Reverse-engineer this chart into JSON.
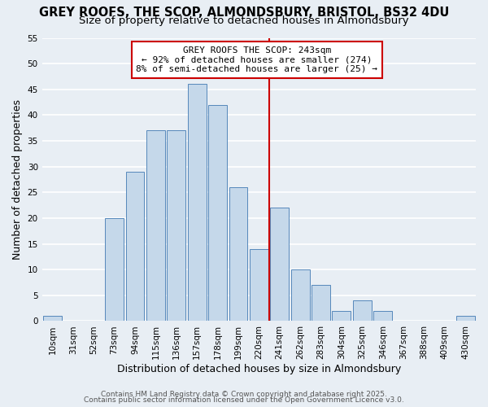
{
  "title": "GREY ROOFS, THE SCOP, ALMONDSBURY, BRISTOL, BS32 4DU",
  "subtitle": "Size of property relative to detached houses in Almondsbury",
  "xlabel": "Distribution of detached houses by size in Almondsbury",
  "ylabel": "Number of detached properties",
  "bar_color": "#c5d8ea",
  "bar_edge_color": "#5588bb",
  "background_color": "#e8eef4",
  "grid_color": "#ffffff",
  "categories": [
    "10sqm",
    "31sqm",
    "52sqm",
    "73sqm",
    "94sqm",
    "115sqm",
    "136sqm",
    "157sqm",
    "178sqm",
    "199sqm",
    "220sqm",
    "241sqm",
    "262sqm",
    "283sqm",
    "304sqm",
    "325sqm",
    "346sqm",
    "367sqm",
    "388sqm",
    "409sqm",
    "430sqm"
  ],
  "values": [
    1,
    0,
    0,
    20,
    29,
    37,
    37,
    46,
    42,
    26,
    14,
    22,
    10,
    7,
    2,
    4,
    2,
    0,
    0,
    0,
    1
  ],
  "ylim": [
    0,
    55
  ],
  "yticks": [
    0,
    5,
    10,
    15,
    20,
    25,
    30,
    35,
    40,
    45,
    50,
    55
  ],
  "vline_color": "#cc0000",
  "annotation_title": "GREY ROOFS THE SCOP: 243sqm",
  "annotation_line1": "← 92% of detached houses are smaller (274)",
  "annotation_line2": "8% of semi-detached houses are larger (25) →",
  "annotation_box_color": "#ffffff",
  "annotation_box_edge_color": "#cc0000",
  "footer1": "Contains HM Land Registry data © Crown copyright and database right 2025.",
  "footer2": "Contains public sector information licensed under the Open Government Licence v3.0.",
  "title_fontsize": 10.5,
  "subtitle_fontsize": 9.5,
  "label_fontsize": 9,
  "tick_fontsize": 7.5,
  "annotation_fontsize": 8,
  "footer_fontsize": 6.5
}
